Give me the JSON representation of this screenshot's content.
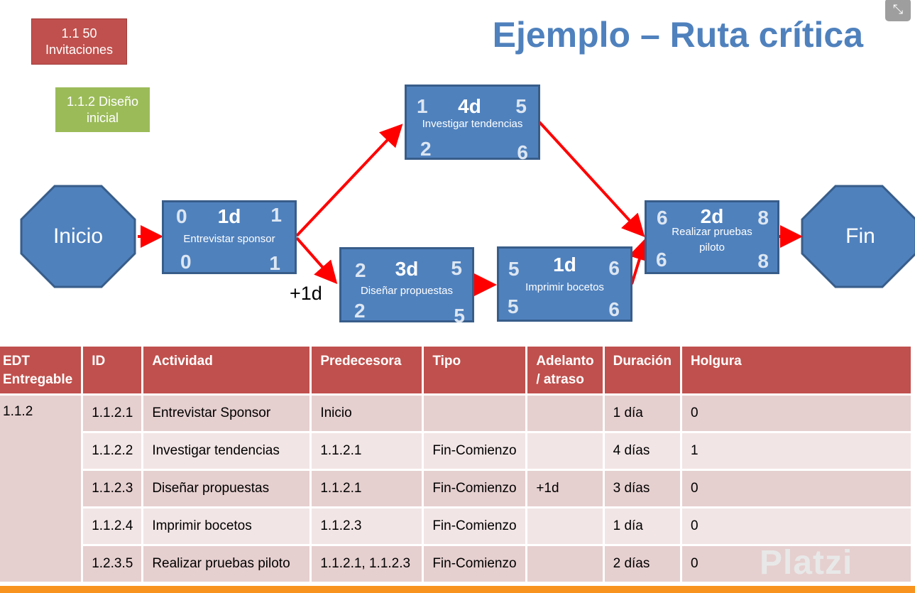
{
  "tags": {
    "invitaciones": "1.1 50 Invitaciones",
    "diseno": "1.1.2 Diseño inicial"
  },
  "title": "Ejemplo – Ruta crítica",
  "exit_icon": "exit-fullscreen-icon",
  "diagram": {
    "start": "Inicio",
    "end": "Fin",
    "lag_label": "+1d",
    "nodes": {
      "entrevistar": {
        "es": "0",
        "dur": "1d",
        "ef": "1",
        "ls": "0",
        "lf": "1",
        "label": "Entrevistar sponsor"
      },
      "investigar": {
        "es": "1",
        "dur": "4d",
        "ef": "5",
        "ls": "2",
        "lf": "6",
        "label": "Investigar tendencias"
      },
      "disenar": {
        "es": "2",
        "dur": "3d",
        "ef": "5",
        "ls": "2",
        "lf": "5",
        "label": "Diseñar  propuestas"
      },
      "imprimir": {
        "es": "5",
        "dur": "1d",
        "ef": "6",
        "ls": "5",
        "lf": "6",
        "label": "Imprimir bocetos"
      },
      "realizar": {
        "es": "6",
        "dur": "2d",
        "ef": "8",
        "ls": "6",
        "lf": "8",
        "label": "Realizar pruebas piloto"
      }
    },
    "colors": {
      "node": "#4f81bd",
      "arrow": "#ff0000",
      "tag_red": "#c0504d",
      "tag_green": "#9bbb59"
    }
  },
  "table": {
    "headers": {
      "edt": "EDT Entregable",
      "id": "ID",
      "actividad": "Actividad",
      "predecesora": "Predecesora",
      "tipo": "Tipo",
      "adelanto": "Adelanto / atraso",
      "duracion": "Duración",
      "holgura": "Holgura"
    },
    "edt": "1.1.2",
    "rows": [
      {
        "id": "1.1.2.1",
        "actividad": "Entrevistar Sponsor",
        "predecesora": "Inicio",
        "tipo": "",
        "adelanto": "",
        "duracion": "1 día",
        "holgura": "0"
      },
      {
        "id": "1.1.2.2",
        "actividad": "Investigar tendencias",
        "predecesora": "1.1.2.1",
        "tipo": "Fin-Comienzo",
        "adelanto": "",
        "duracion": "4 días",
        "holgura": "1"
      },
      {
        "id": "1.1.2.3",
        "actividad": "Diseñar propuestas",
        "predecesora": "1.1.2.1",
        "tipo": "Fin-Comienzo",
        "adelanto": "+1d",
        "duracion": "3 días",
        "holgura": "0"
      },
      {
        "id": "1.1.2.4",
        "actividad": "Imprimir bocetos",
        "predecesora": "1.1.2.3",
        "tipo": "Fin-Comienzo",
        "adelanto": "",
        "duracion": "1 día",
        "holgura": "0"
      },
      {
        "id": "1.2.3.5",
        "actividad": "Realizar pruebas piloto",
        "predecesora": "1.1.2.1, 1.1.2.3",
        "tipo": "Fin-Comienzo",
        "adelanto": "",
        "duracion": "2 días",
        "holgura": "0"
      }
    ]
  },
  "watermark": "Platzi"
}
